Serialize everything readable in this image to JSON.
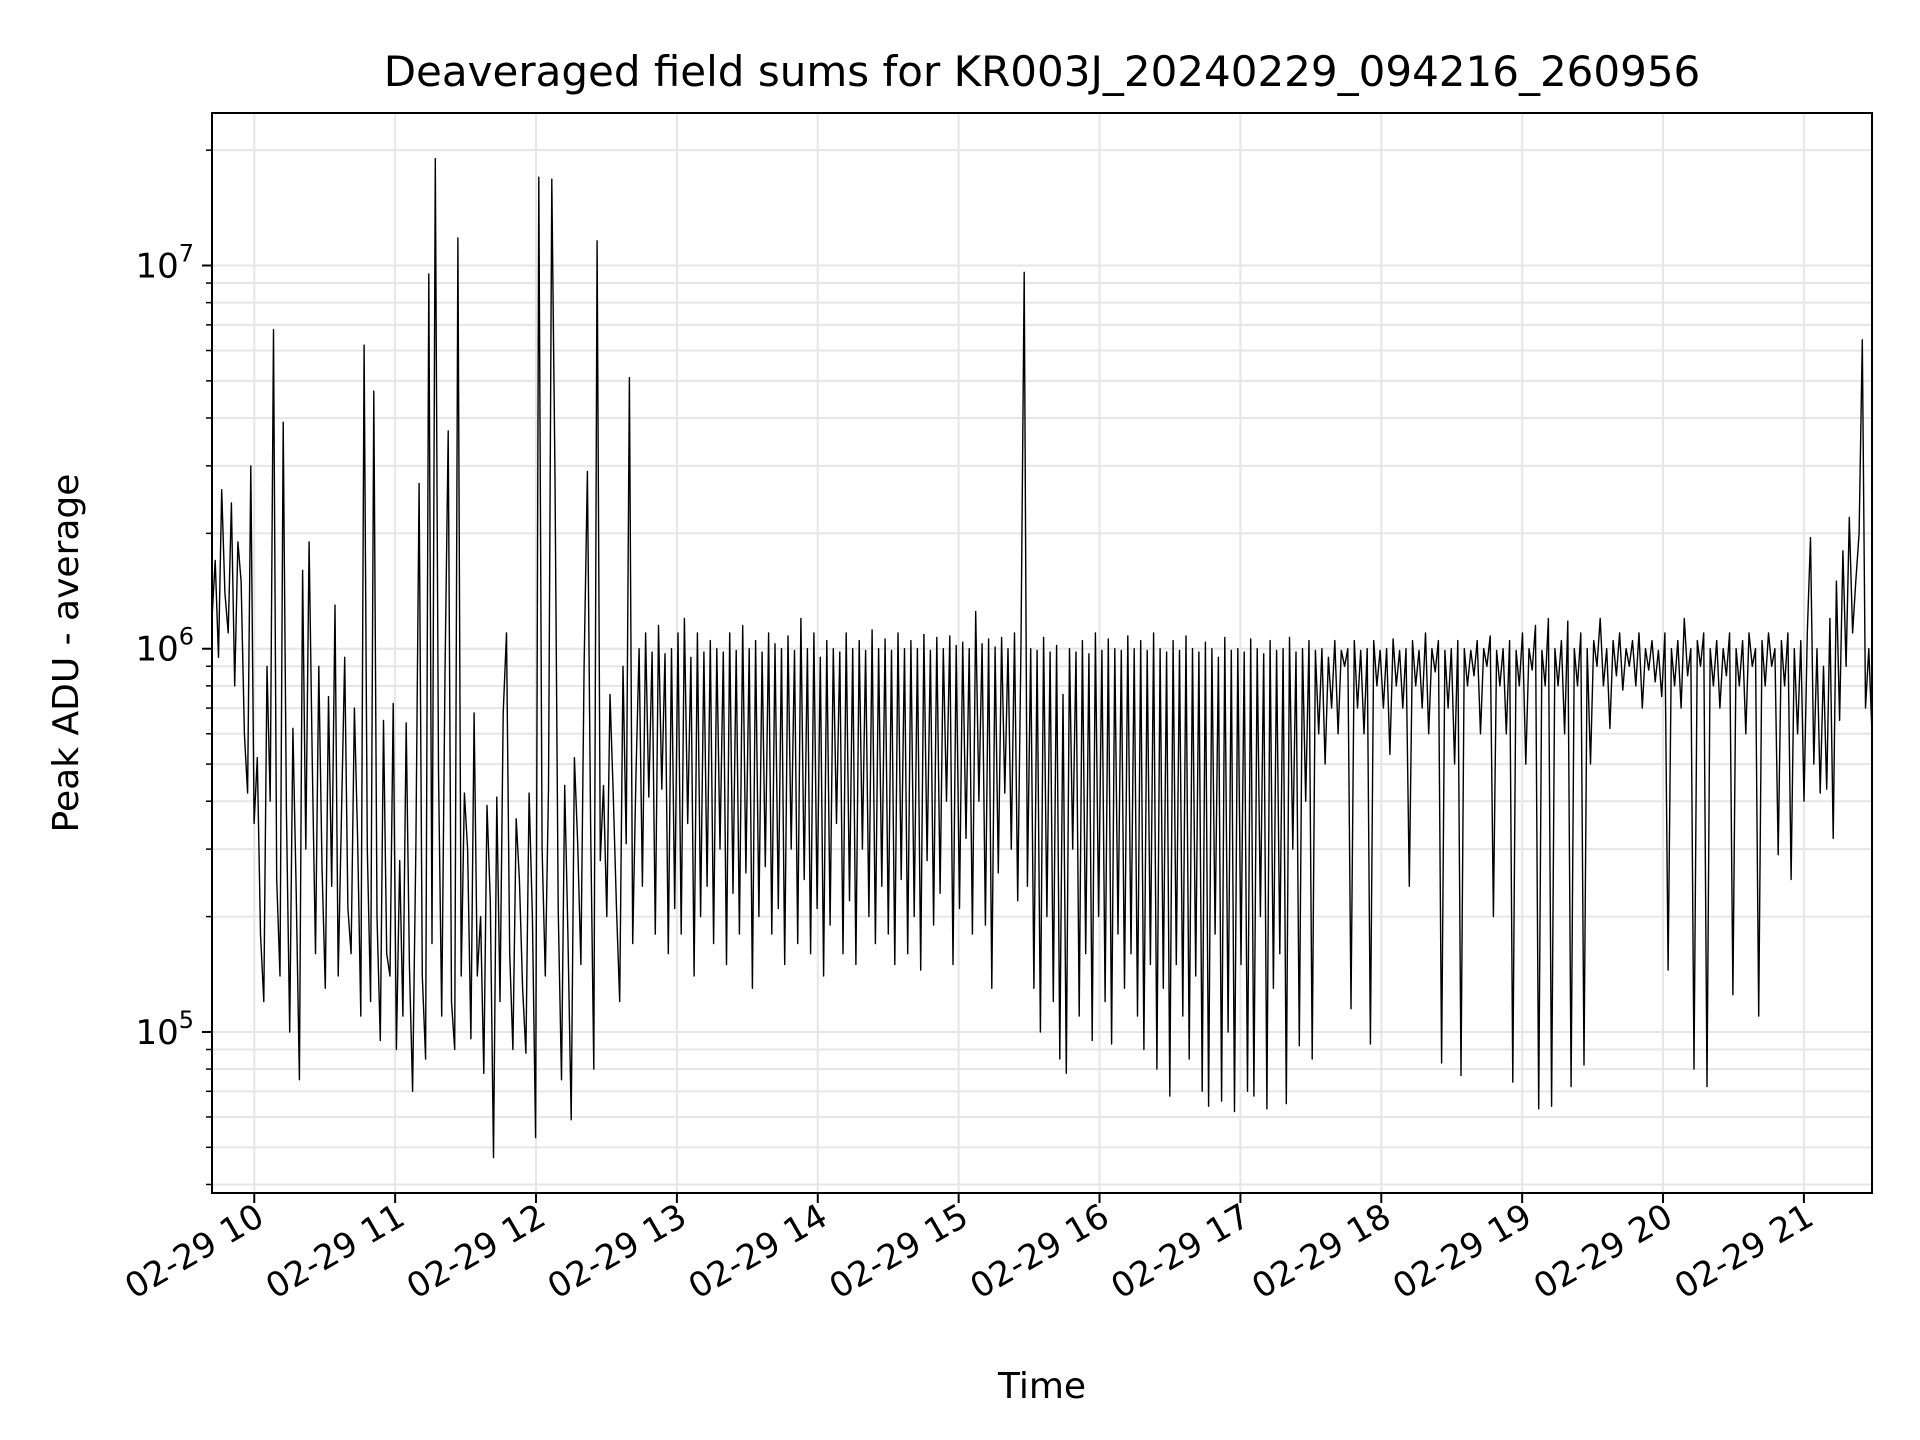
{
  "chart_data": {
    "type": "line",
    "title": "Deaveraged field sums for KR003J_20240229_094216_260956",
    "xlabel": "Time",
    "ylabel": "Peak ADU - average",
    "x_ticks": [
      "02-29 10",
      "02-29 11",
      "02-29 12",
      "02-29 13",
      "02-29 14",
      "02-29 15",
      "02-29 16",
      "02-29 17",
      "02-29 18",
      "02-29 19",
      "02-29 20",
      "02-29 21"
    ],
    "y_ticks": [
      {
        "value": 100000,
        "base": "10",
        "exp": "5"
      },
      {
        "value": 1000000,
        "base": "10",
        "exp": "6"
      },
      {
        "value": 10000000,
        "base": "10",
        "exp": "7"
      }
    ],
    "x_range": [
      "2024-02-29 09:42",
      "2024-02-29 21:29"
    ],
    "ylim": [
      38000,
      25000000
    ],
    "yscale": "log",
    "grid": true,
    "line_color": "#000000",
    "series": [
      {
        "x_start": "2024-02-29 09:42",
        "x_end": "2024-02-29 21:29",
        "values": [
          1200000,
          1700000,
          950000,
          2600000,
          1400000,
          1100000,
          2400000,
          800000,
          1900000,
          1500000,
          600000,
          420000,
          3000000,
          350000,
          520000,
          180000,
          120000,
          900000,
          400000,
          6800000,
          250000,
          140000,
          3900000,
          380000,
          100000,
          620000,
          240000,
          75000,
          1600000,
          300000,
          1900000,
          500000,
          160000,
          900000,
          270000,
          130000,
          750000,
          240000,
          1300000,
          140000,
          360000,
          950000,
          210000,
          160000,
          700000,
          320000,
          110000,
          6200000,
          300000,
          120000,
          4700000,
          200000,
          95000,
          650000,
          160000,
          140000,
          720000,
          90000,
          280000,
          110000,
          640000,
          150000,
          70000,
          310000,
          2700000,
          140000,
          85000,
          9500000,
          170000,
          19000000,
          480000,
          110000,
          860000,
          3700000,
          120000,
          90000,
          11800000,
          140000,
          420000,
          300000,
          96000,
          680000,
          140000,
          200000,
          78000,
          390000,
          220000,
          47000,
          410000,
          120000,
          680000,
          1100000,
          160000,
          90000,
          360000,
          250000,
          130000,
          88000,
          420000,
          200000,
          53000,
          17000000,
          300000,
          140000,
          430000,
          16800000,
          2800000,
          210000,
          75000,
          440000,
          180000,
          59000,
          520000,
          310000,
          150000,
          900000,
          2900000,
          350000,
          80000,
          11600000,
          280000,
          440000,
          200000,
          760000,
          420000,
          210000,
          120000,
          900000,
          310000,
          5100000,
          170000,
          460000,
          1000000,
          240000,
          1100000,
          410000,
          980000,
          180000,
          1150000,
          430000,
          970000,
          160000,
          1000000,
          210000,
          1100000,
          180000,
          1200000,
          350000,
          950000,
          140000,
          1100000,
          200000,
          980000,
          240000,
          1050000,
          170000,
          1000000,
          300000,
          980000,
          150000,
          1100000,
          230000,
          990000,
          180000,
          1150000,
          260000,
          1000000,
          130000,
          1050000,
          200000,
          980000,
          270000,
          1100000,
          180000,
          1030000,
          210000,
          1000000,
          150000,
          1080000,
          300000,
          990000,
          170000,
          1200000,
          250000,
          1000000,
          160000,
          1100000,
          210000,
          950000,
          140000,
          1050000,
          190000,
          1000000,
          350000,
          980000,
          160000,
          1100000,
          220000,
          1000000,
          150000,
          1050000,
          300000,
          990000,
          200000,
          1120000,
          170000,
          1000000,
          240000,
          1060000,
          180000,
          990000,
          150000,
          1100000,
          250000,
          1000000,
          160000,
          1050000,
          200000,
          1000000,
          145000,
          1090000,
          280000,
          990000,
          190000,
          1070000,
          230000,
          1000000,
          400000,
          1080000,
          150000,
          1020000,
          210000,
          1040000,
          320000,
          1000000,
          180000,
          1250000,
          400000,
          1030000,
          190000,
          1060000,
          130000,
          1010000,
          260000,
          1070000,
          420000,
          1000000,
          300000,
          1100000,
          220000,
          1030000,
          9600000,
          240000,
          1000000,
          130000,
          990000,
          100000,
          1070000,
          200000,
          980000,
          120000,
          1020000,
          85000,
          760000,
          78000,
          1000000,
          300000,
          980000,
          110000,
          1050000,
          160000,
          970000,
          95000,
          1100000,
          200000,
          990000,
          120000,
          1060000,
          93000,
          1000000,
          180000,
          990000,
          130000,
          1080000,
          160000,
          1000000,
          110000,
          1050000,
          90000,
          990000,
          150000,
          1100000,
          80000,
          1000000,
          130000,
          980000,
          68000,
          1050000,
          150000,
          990000,
          110000,
          1080000,
          85000,
          1000000,
          140000,
          980000,
          70000,
          1040000,
          64000,
          1000000,
          180000,
          950000,
          66000,
          1070000,
          100000,
          990000,
          62000,
          1000000,
          150000,
          980000,
          70000,
          1060000,
          68000,
          1000000,
          200000,
          970000,
          63000,
          1050000,
          130000,
          990000,
          160000,
          1000000,
          65000,
          1070000,
          300000,
          980000,
          92000,
          1000000,
          400000,
          1050000,
          85000,
          990000,
          600000,
          1000000,
          500000,
          950000,
          700000,
          1050000,
          600000,
          990000,
          900000,
          1000000,
          115000,
          1050000,
          700000,
          990000,
          600000,
          1000000,
          93000,
          1050000,
          800000,
          990000,
          700000,
          1000000,
          530000,
          1060000,
          800000,
          990000,
          700000,
          1000000,
          240000,
          1050000,
          800000,
          990000,
          700000,
          1100000,
          600000,
          1000000,
          870000,
          1050000,
          83000,
          990000,
          700000,
          1000000,
          500000,
          1050000,
          77000,
          1000000,
          800000,
          990000,
          850000,
          1050000,
          600000,
          1000000,
          900000,
          1080000,
          200000,
          990000,
          800000,
          1000000,
          600000,
          1050000,
          74000,
          990000,
          800000,
          1100000,
          500000,
          1000000,
          880000,
          1150000,
          63000,
          990000,
          800000,
          1200000,
          64000,
          1000000,
          800000,
          1050000,
          600000,
          1180000,
          72000,
          1000000,
          800000,
          1100000,
          82000,
          1000000,
          500000,
          1050000,
          900000,
          1200000,
          800000,
          1000000,
          620000,
          1050000,
          850000,
          1100000,
          780000,
          1000000,
          900000,
          1050000,
          800000,
          1100000,
          700000,
          1000000,
          880000,
          1050000,
          820000,
          990000,
          750000,
          1100000,
          145000,
          1000000,
          800000,
          1050000,
          700000,
          1200000,
          850000,
          1000000,
          80000,
          1050000,
          900000,
          1100000,
          72000,
          1000000,
          800000,
          1050000,
          700000,
          1000000,
          850000,
          1100000,
          125000,
          1000000,
          800000,
          1050000,
          600000,
          1100000,
          900000,
          1000000,
          110000,
          1050000,
          800000,
          1100000,
          900000,
          1000000,
          290000,
          1050000,
          800000,
          1100000,
          250000,
          1000000,
          600000,
          1050000,
          400000,
          1100000,
          1950000,
          500000,
          1000000,
          420000,
          900000,
          430000,
          1200000,
          320000,
          1500000,
          650000,
          1800000,
          900000,
          2200000,
          1100000,
          1500000,
          2000000,
          6400000,
          700000,
          1000000,
          600000
        ]
      }
    ]
  }
}
